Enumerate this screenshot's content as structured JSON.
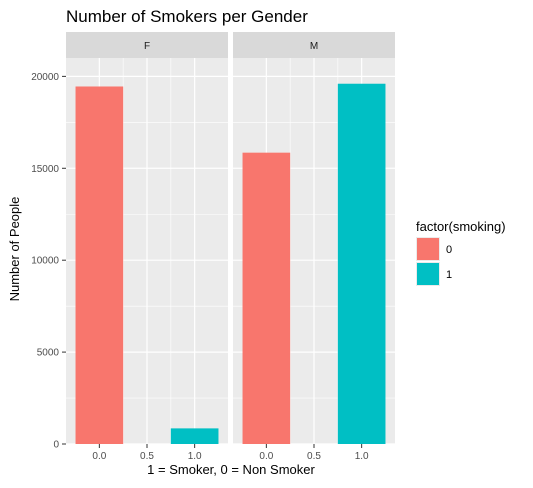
{
  "chart_data": {
    "type": "bar",
    "title": "Number of Smokers per Gender",
    "xlabel": "1 = Smoker, 0 = Non Smoker",
    "ylabel": "Number of People",
    "facet_variable": "gender",
    "facets": [
      "F",
      "M"
    ],
    "xlim": [
      -0.35,
      1.35
    ],
    "ylim": [
      0,
      21000
    ],
    "x_ticks": [
      0.0,
      0.5,
      1.0
    ],
    "x_tick_labels": [
      "0.0",
      "0.5",
      "1.0"
    ],
    "y_ticks": [
      0,
      5000,
      10000,
      15000,
      20000
    ],
    "y_tick_labels": [
      "0",
      "5000",
      "10000",
      "15000",
      "20000"
    ],
    "bar_width": 0.5,
    "grid": true,
    "legend": {
      "title": "factor(smoking)",
      "position": "right",
      "entries": [
        {
          "label": "0",
          "color": "#F8766D"
        },
        {
          "label": "1",
          "color": "#00BFC4"
        }
      ]
    },
    "series": [
      {
        "facet": "F",
        "x": 0,
        "group": "0",
        "value": 19450,
        "color": "#F8766D"
      },
      {
        "facet": "F",
        "x": 1,
        "group": "1",
        "value": 850,
        "color": "#00BFC4"
      },
      {
        "facet": "M",
        "x": 0,
        "group": "0",
        "value": 15850,
        "color": "#F8766D"
      },
      {
        "facet": "M",
        "x": 1,
        "group": "1",
        "value": 19600,
        "color": "#00BFC4"
      }
    ],
    "colors": {
      "panel_background": "#EBEBEB",
      "strip_background": "#D9D9D9",
      "gridline": "#FFFFFF"
    }
  }
}
